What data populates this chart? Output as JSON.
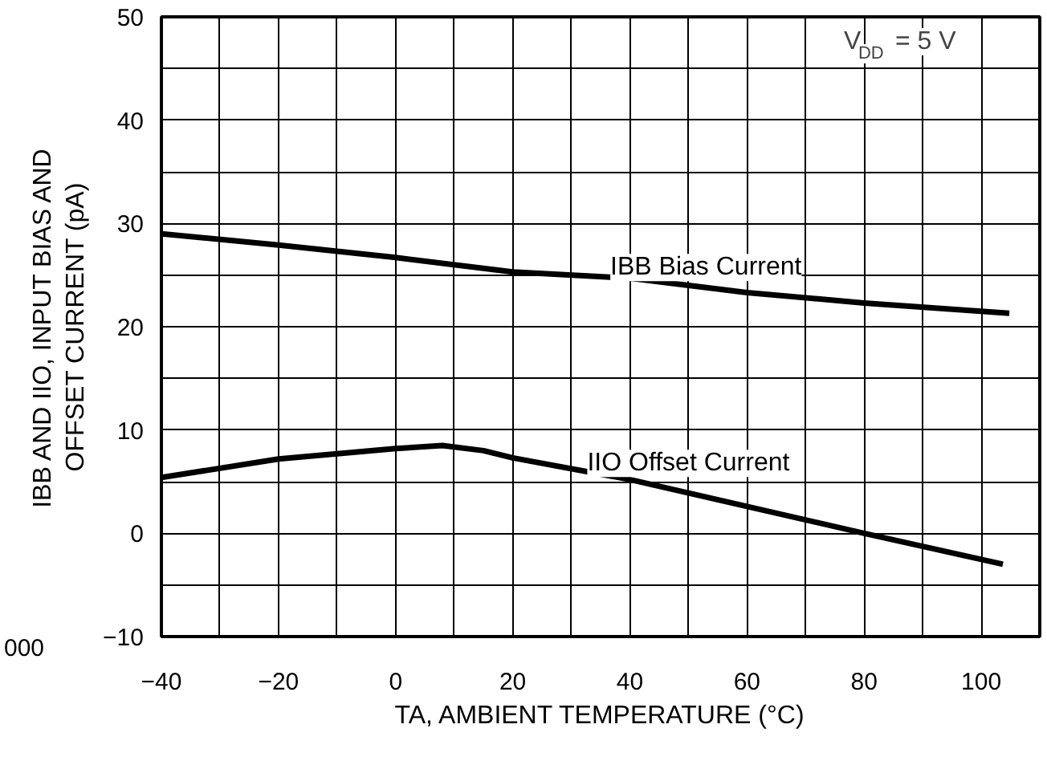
{
  "chart_data": {
    "type": "line",
    "xlabel": "TA, AMBIENT TEMPERATURE (°C)",
    "ylabel": "IBB AND IIO, INPUT BIAS AND\nOFFSET CURRENT (pA)",
    "x": [
      -40,
      -20,
      0,
      20,
      40,
      60,
      80,
      104.8
    ],
    "series": [
      {
        "name": "IBB Bias Current",
        "color": "#000000",
        "values": [
          29.0,
          27.9,
          26.7,
          25.3,
          24.7,
          23.3,
          22.3,
          21.3
        ]
      },
      {
        "name": "IIO Offset Current",
        "color": "#000000",
        "x": [
          -40,
          -20,
          0,
          8,
          15,
          20,
          40,
          60,
          80,
          103.7
        ],
        "values": [
          5.4,
          7.2,
          8.2,
          8.5,
          8.0,
          7.3,
          5.2,
          2.6,
          0,
          -3.0
        ]
      }
    ],
    "xlim": [
      -40,
      110
    ],
    "ylim": [
      -10,
      50
    ],
    "xticks": [
      -40,
      {
        "value": -30,
        "label": null
      },
      -20,
      {
        "value": -10,
        "label": null
      },
      0,
      {
        "value": 10,
        "label": null
      },
      20,
      {
        "value": 30,
        "label": null
      },
      40,
      {
        "value": 50,
        "label": null
      },
      60,
      {
        "value": 70,
        "label": null
      },
      80,
      {
        "value": 90,
        "label": null
      },
      100,
      {
        "value": 110,
        "label": null
      }
    ],
    "yticks": [
      -10,
      {
        "value": -5,
        "label": null
      },
      0,
      {
        "value": 5,
        "label": null
      },
      10,
      {
        "value": 15,
        "label": null
      },
      20,
      {
        "value": 25,
        "label": null
      },
      30,
      {
        "value": 35,
        "label": null
      },
      40,
      {
        "value": 45,
        "label": null
      },
      50
    ],
    "grid": true,
    "marker": "none",
    "line_style": "solid",
    "legend": false,
    "annotations": [
      "V$_{DD}$ = 5 V",
      "000"
    ]
  }
}
